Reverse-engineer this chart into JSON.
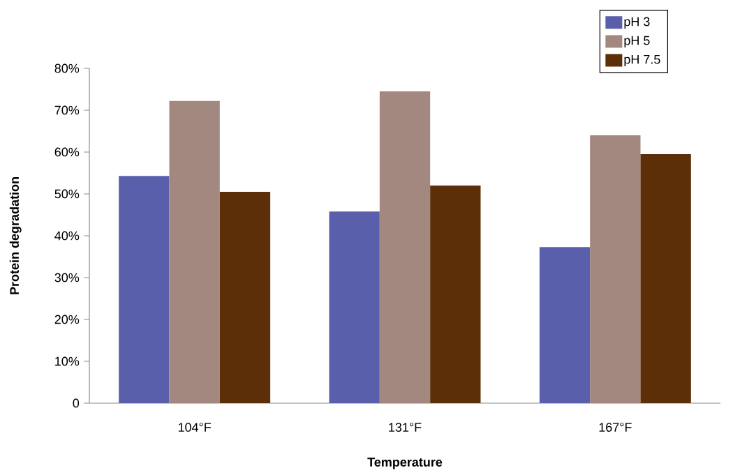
{
  "chart_data": {
    "type": "bar",
    "xlabel": "Temperature",
    "ylabel": "Protein degradation",
    "categories": [
      "104°F",
      "131°F",
      "167°F"
    ],
    "series": [
      {
        "name": "pH 3",
        "color": "#5a5fab",
        "values": [
          54.3,
          45.8,
          37.3
        ]
      },
      {
        "name": "pH 5",
        "color": "#a3887f",
        "values": [
          72.2,
          74.5,
          64
        ]
      },
      {
        "name": "pH 7.5",
        "color": "#5c2f08",
        "values": [
          50.5,
          52,
          59.5
        ]
      }
    ],
    "ylim": [
      0,
      80
    ],
    "yticks": [
      0,
      {
        "value": 10,
        "label": "10%"
      },
      {
        "value": 20,
        "label": "20%"
      },
      {
        "value": 30,
        "label": "30%"
      },
      {
        "value": 40,
        "label": "40%"
      },
      {
        "value": 50,
        "label": "50%"
      },
      {
        "value": 60,
        "label": "60%"
      },
      {
        "value": 70,
        "label": "70%"
      },
      {
        "value": 80,
        "label": "80%"
      }
    ],
    "legend": "top right",
    "grid": false
  }
}
